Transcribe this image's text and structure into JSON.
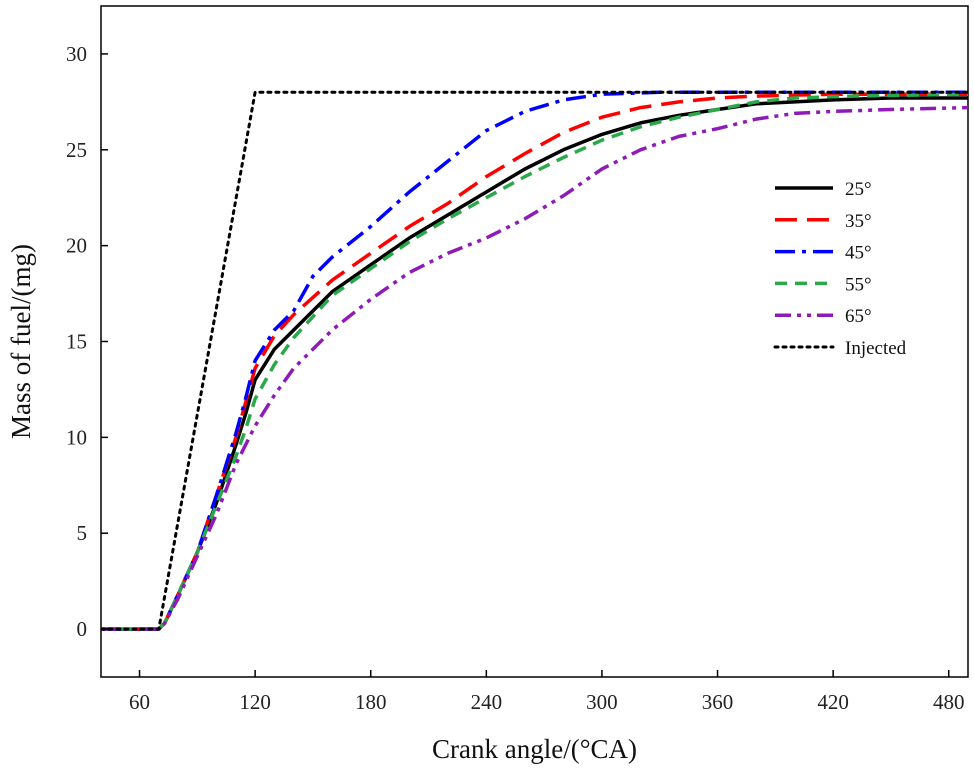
{
  "chart_data": {
    "type": "line",
    "title": "",
    "xlabel": "Crank angle/(°CA)",
    "ylabel": "Mass of fuel/(mg)",
    "xlim": [
      40,
      490
    ],
    "ylim": [
      -2.5,
      32.5
    ],
    "xticks": [
      60,
      120,
      180,
      240,
      300,
      360,
      420,
      480
    ],
    "yticks": [
      0,
      5,
      10,
      15,
      20,
      25,
      30
    ],
    "grid": false,
    "legend_position": "right",
    "series": [
      {
        "name": "25°",
        "color": "#000000",
        "dash": "solid",
        "points": [
          [
            40,
            0
          ],
          [
            70,
            0
          ],
          [
            73,
            0.3
          ],
          [
            80,
            1.8
          ],
          [
            90,
            4
          ],
          [
            100,
            6.6
          ],
          [
            110,
            9.6
          ],
          [
            115,
            11.2
          ],
          [
            120,
            13
          ],
          [
            130,
            14.6
          ],
          [
            140,
            15.6
          ],
          [
            160,
            17.6
          ],
          [
            180,
            19
          ],
          [
            200,
            20.4
          ],
          [
            220,
            21.6
          ],
          [
            240,
            22.8
          ],
          [
            260,
            24
          ],
          [
            280,
            25
          ],
          [
            300,
            25.8
          ],
          [
            320,
            26.4
          ],
          [
            340,
            26.8
          ],
          [
            360,
            27.1
          ],
          [
            380,
            27.4
          ],
          [
            400,
            27.5
          ],
          [
            420,
            27.6
          ],
          [
            450,
            27.7
          ],
          [
            490,
            27.7
          ]
        ]
      },
      {
        "name": "35°",
        "color": "#ff0000",
        "dash": "longdash",
        "points": [
          [
            40,
            0
          ],
          [
            70,
            0
          ],
          [
            73,
            0.3
          ],
          [
            80,
            1.8
          ],
          [
            90,
            4
          ],
          [
            100,
            7
          ],
          [
            110,
            10
          ],
          [
            115,
            11.8
          ],
          [
            120,
            13.6
          ],
          [
            130,
            15.3
          ],
          [
            140,
            16.4
          ],
          [
            160,
            18.2
          ],
          [
            180,
            19.6
          ],
          [
            200,
            21
          ],
          [
            220,
            22.2
          ],
          [
            240,
            23.6
          ],
          [
            260,
            24.8
          ],
          [
            280,
            25.9
          ],
          [
            300,
            26.7
          ],
          [
            320,
            27.2
          ],
          [
            340,
            27.5
          ],
          [
            360,
            27.7
          ],
          [
            380,
            27.8
          ],
          [
            420,
            27.9
          ],
          [
            490,
            27.9
          ]
        ]
      },
      {
        "name": "45°",
        "color": "#0000ff",
        "dash": "dashdot",
        "points": [
          [
            40,
            0
          ],
          [
            70,
            0
          ],
          [
            73,
            0.3
          ],
          [
            80,
            1.8
          ],
          [
            90,
            4
          ],
          [
            100,
            7
          ],
          [
            110,
            10.2
          ],
          [
            115,
            12
          ],
          [
            120,
            14
          ],
          [
            130,
            15.6
          ],
          [
            140,
            16.6
          ],
          [
            150,
            18.4
          ],
          [
            160,
            19.4
          ],
          [
            180,
            21
          ],
          [
            200,
            22.8
          ],
          [
            220,
            24.4
          ],
          [
            240,
            26
          ],
          [
            260,
            27
          ],
          [
            280,
            27.6
          ],
          [
            300,
            27.9
          ],
          [
            330,
            28
          ],
          [
            490,
            28
          ]
        ]
      },
      {
        "name": "55°",
        "color": "#2aa84a",
        "dash": "dash",
        "points": [
          [
            40,
            0
          ],
          [
            70,
            0
          ],
          [
            73,
            0.3
          ],
          [
            80,
            1.8
          ],
          [
            90,
            4
          ],
          [
            100,
            6.5
          ],
          [
            110,
            9
          ],
          [
            115,
            10.4
          ],
          [
            120,
            12
          ],
          [
            130,
            13.8
          ],
          [
            140,
            15.2
          ],
          [
            160,
            17.4
          ],
          [
            180,
            18.8
          ],
          [
            200,
            20.2
          ],
          [
            220,
            21.4
          ],
          [
            240,
            22.5
          ],
          [
            260,
            23.6
          ],
          [
            280,
            24.6
          ],
          [
            300,
            25.5
          ],
          [
            320,
            26.2
          ],
          [
            340,
            26.7
          ],
          [
            360,
            27.1
          ],
          [
            380,
            27.5
          ],
          [
            400,
            27.7
          ],
          [
            430,
            27.8
          ],
          [
            490,
            27.9
          ]
        ]
      },
      {
        "name": "65°",
        "color": "#8e1bb8",
        "dash": "dashdotdot",
        "points": [
          [
            40,
            0
          ],
          [
            70,
            0
          ],
          [
            73,
            0.3
          ],
          [
            80,
            1.6
          ],
          [
            90,
            3.8
          ],
          [
            100,
            6
          ],
          [
            110,
            8.6
          ],
          [
            120,
            10.6
          ],
          [
            130,
            12.2
          ],
          [
            140,
            13.6
          ],
          [
            160,
            15.6
          ],
          [
            180,
            17.2
          ],
          [
            200,
            18.6
          ],
          [
            220,
            19.6
          ],
          [
            240,
            20.4
          ],
          [
            260,
            21.4
          ],
          [
            280,
            22.6
          ],
          [
            300,
            24
          ],
          [
            320,
            25
          ],
          [
            340,
            25.7
          ],
          [
            360,
            26.1
          ],
          [
            380,
            26.6
          ],
          [
            400,
            26.9
          ],
          [
            420,
            27
          ],
          [
            450,
            27.1
          ],
          [
            490,
            27.2
          ]
        ]
      },
      {
        "name": "Injected",
        "color": "#000000",
        "dash": "dot",
        "points": [
          [
            40,
            0
          ],
          [
            70,
            0
          ],
          [
            120,
            28
          ],
          [
            490,
            28
          ]
        ]
      }
    ]
  }
}
